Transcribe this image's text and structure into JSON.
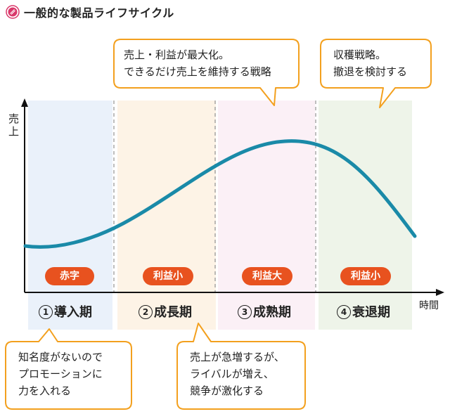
{
  "title": "一般的な製品ライフサイクル",
  "axes": {
    "y_label": "売上",
    "x_label": "時間"
  },
  "phases": [
    {
      "num": "1",
      "name": "導入期",
      "badge": "赤字"
    },
    {
      "num": "2",
      "name": "成長期",
      "badge": "利益小"
    },
    {
      "num": "3",
      "name": "成熟期",
      "badge": "利益大"
    },
    {
      "num": "4",
      "name": "衰退期",
      "badge": "利益小"
    }
  ],
  "callouts": {
    "maturity": [
      "売上・利益が最大化。",
      "できるだけ売上を維持する戦略"
    ],
    "decline": [
      "収穫戦略。",
      "撤退を検討する"
    ],
    "introduction": [
      "知名度がないので",
      "プロモーションに",
      "力を入れる"
    ],
    "growth": [
      "売上が急増するが、",
      "ライバルが増え、",
      "競争が激化する"
    ]
  },
  "colors": {
    "curve": "#1a8aa8",
    "badge": "#e8521f",
    "bubble_border": "#f3a01e",
    "phase_introduction": "#eaf1fa",
    "phase_growth": "#fdf3e6",
    "phase_maturity": "#fbf0f6",
    "phase_decline": "#eef4e9"
  }
}
